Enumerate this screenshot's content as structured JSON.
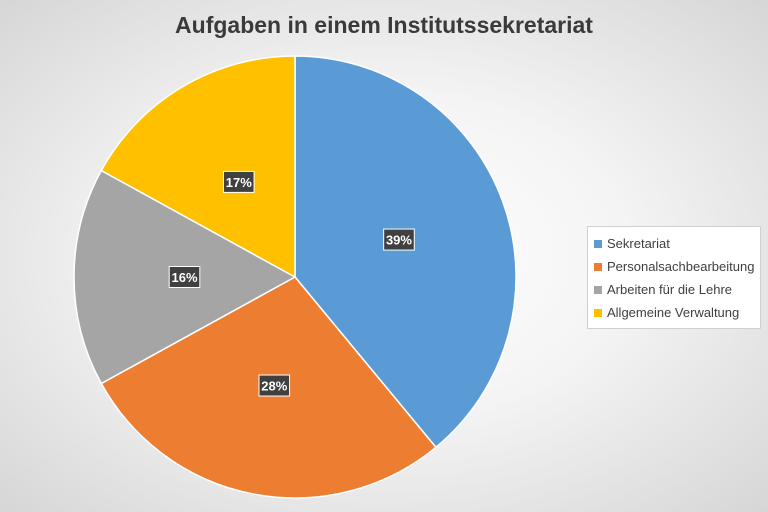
{
  "chart_data": {
    "type": "pie",
    "title": "Aufgaben in einem Institutssekretariat",
    "categories": [
      "Sekretariat",
      "Personalsachbearbeitung",
      "Arbeiten für die Lehre",
      "Allgemeine Verwaltung"
    ],
    "values": [
      39,
      28,
      16,
      17
    ],
    "data_labels": [
      "39%",
      "28%",
      "16%",
      "17%"
    ],
    "colors": [
      "#5b9bd5",
      "#ed7d31",
      "#a5a5a5",
      "#ffc000"
    ],
    "start_angle": "12 o'clock",
    "direction": "clockwise",
    "legend_position": "right"
  }
}
